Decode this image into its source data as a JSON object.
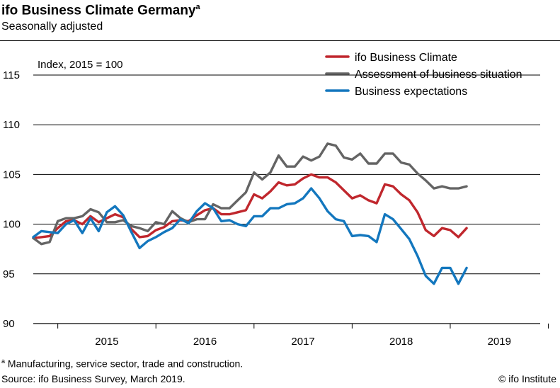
{
  "header": {
    "title": "ifo Business Climate Germany",
    "title_mark": "a",
    "subtitle": "Seasonally adjusted"
  },
  "footer": {
    "footnote_mark": "a",
    "footnote": "Manufacturing, service sector, trade and construction.",
    "source": "Source: ifo Business Survey, March 2019.",
    "copyright": "© ifo Institute"
  },
  "chart_data": {
    "type": "line",
    "title": "ifo Business Climate Germany",
    "subtitle": "Seasonally adjusted",
    "annotation": "Index, 2015 = 100",
    "ylim": [
      90,
      115
    ],
    "yticks": [
      90,
      95,
      100,
      105,
      110,
      115
    ],
    "x_range": [
      "2014-10",
      "2019-12"
    ],
    "year_labels": [
      "2015",
      "2016",
      "2017",
      "2018",
      "2019"
    ],
    "grid": true,
    "legend_position": "top-right",
    "x": [
      "2014-10",
      "2014-11",
      "2014-12",
      "2015-01",
      "2015-02",
      "2015-03",
      "2015-04",
      "2015-05",
      "2015-06",
      "2015-07",
      "2015-08",
      "2015-09",
      "2015-10",
      "2015-11",
      "2015-12",
      "2016-01",
      "2016-02",
      "2016-03",
      "2016-04",
      "2016-05",
      "2016-06",
      "2016-07",
      "2016-08",
      "2016-09",
      "2016-10",
      "2016-11",
      "2016-12",
      "2017-01",
      "2017-02",
      "2017-03",
      "2017-04",
      "2017-05",
      "2017-06",
      "2017-07",
      "2017-08",
      "2017-09",
      "2017-10",
      "2017-11",
      "2017-12",
      "2018-01",
      "2018-02",
      "2018-03",
      "2018-04",
      "2018-05",
      "2018-06",
      "2018-07",
      "2018-08",
      "2018-09",
      "2018-10",
      "2018-11",
      "2018-12",
      "2019-01",
      "2019-02",
      "2019-03"
    ],
    "series": [
      {
        "name": "ifo Business Climate",
        "color": "#c0272d",
        "values": [
          98.6,
          98.7,
          98.8,
          99.6,
          100.3,
          100.4,
          100.0,
          100.8,
          100.2,
          100.6,
          101.0,
          100.7,
          99.5,
          98.7,
          98.8,
          99.4,
          99.7,
          100.3,
          100.4,
          100.3,
          100.9,
          101.4,
          101.6,
          101.0,
          101.0,
          101.2,
          101.4,
          103.0,
          102.6,
          103.3,
          104.2,
          103.9,
          104.0,
          104.6,
          105.0,
          104.7,
          104.7,
          104.2,
          103.4,
          102.6,
          102.9,
          102.4,
          102.1,
          104.0,
          103.8,
          103.0,
          102.4,
          101.2,
          99.4,
          98.8,
          99.6,
          99.4,
          98.7,
          99.6
        ]
      },
      {
        "name": "Assessment of business situation",
        "color": "#646464",
        "values": [
          98.6,
          98.0,
          98.2,
          100.3,
          100.6,
          100.6,
          100.8,
          101.5,
          101.2,
          100.2,
          100.2,
          100.4,
          99.8,
          99.6,
          99.3,
          100.2,
          100.0,
          101.3,
          100.6,
          100.2,
          100.5,
          100.5,
          102.0,
          101.6,
          101.6,
          102.4,
          103.2,
          105.2,
          104.5,
          105.2,
          106.9,
          105.8,
          105.8,
          106.8,
          106.4,
          106.8,
          108.1,
          107.9,
          106.7,
          106.5,
          107.1,
          106.1,
          106.1,
          107.1,
          107.1,
          106.2,
          106.0,
          105.1,
          104.4,
          103.6,
          103.8,
          103.6,
          103.6,
          103.8
        ]
      },
      {
        "name": "Business expectations",
        "color": "#1377be",
        "values": [
          98.7,
          99.3,
          99.2,
          99.1,
          100.0,
          100.4,
          99.1,
          100.6,
          99.3,
          101.2,
          101.8,
          100.9,
          99.2,
          97.6,
          98.3,
          98.7,
          99.2,
          99.6,
          100.5,
          100.1,
          101.3,
          102.1,
          101.6,
          100.3,
          100.4,
          100.0,
          99.8,
          100.8,
          100.8,
          101.6,
          101.6,
          102.0,
          102.1,
          102.6,
          103.6,
          102.6,
          101.3,
          100.5,
          100.3,
          98.8,
          98.9,
          98.8,
          98.2,
          101.0,
          100.5,
          99.5,
          98.5,
          96.8,
          94.8,
          94.0,
          95.6,
          95.6,
          94.0,
          95.6
        ]
      }
    ]
  }
}
